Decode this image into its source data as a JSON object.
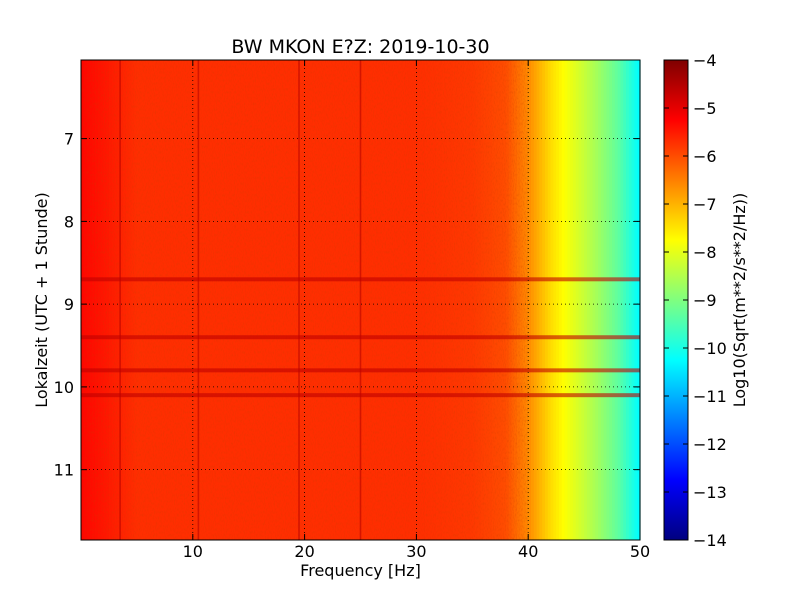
{
  "chart_data": {
    "type": "heatmap",
    "title": "BW MKON E?Z: 2019-10-30",
    "xlabel": "Frequency [Hz]",
    "ylabel": "Lokalzeit (UTC + 1 Stunde)",
    "xlim": [
      0,
      50
    ],
    "ylim": [
      11.85,
      6.05
    ],
    "y_inverted": true,
    "x_ticks": [
      10,
      20,
      30,
      40,
      50
    ],
    "y_ticks": [
      7,
      8,
      9,
      10,
      11
    ],
    "grid": true,
    "colormap": "jet",
    "colorbar": {
      "label": "Log10(Sqrt(m**2/s**2/Hz))",
      "min": -14,
      "max": -4,
      "ticks": [
        -4,
        -5,
        -6,
        -7,
        -8,
        -9,
        -10,
        -11,
        -12,
        -13,
        -14
      ]
    },
    "spectral_profile": {
      "frequencies_hz": [
        0,
        5,
        10,
        20,
        30,
        35,
        38,
        40,
        42,
        44,
        46,
        48,
        50
      ],
      "log10_amplitude": [
        -5.3,
        -5.7,
        -5.7,
        -5.7,
        -5.7,
        -5.8,
        -6.0,
        -6.6,
        -7.4,
        -8.0,
        -8.6,
        -9.3,
        -10.3
      ]
    },
    "features": {
      "vertical_lines_hz": [
        3.5,
        10.5,
        19.5,
        25
      ],
      "horizontal_bands_hour": [
        8.7,
        9.4,
        9.8,
        10.1
      ]
    }
  }
}
